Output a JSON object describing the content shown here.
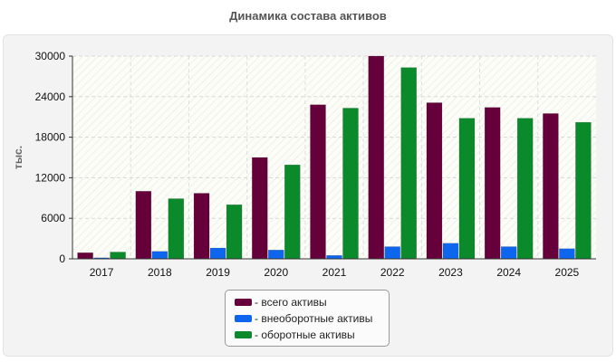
{
  "chart_data": {
    "type": "bar",
    "title": "Динамика состава активов",
    "ylabel": "тыс.",
    "xlabel": "",
    "categories": [
      "2017",
      "2018",
      "2019",
      "2020",
      "2021",
      "2022",
      "2023",
      "2024",
      "2025"
    ],
    "series": [
      {
        "name": "- всего активы",
        "color": "#66003a",
        "values": [
          900,
          10000,
          9700,
          15000,
          22800,
          30000,
          23100,
          22400,
          21500
        ]
      },
      {
        "name": "- внеоборотные активы",
        "color": "#0f66ee",
        "values": [
          150,
          1100,
          1600,
          1300,
          500,
          1800,
          2300,
          1800,
          1500
        ]
      },
      {
        "name": "- оборотные активы",
        "color": "#0a8a2a",
        "values": [
          1000,
          8900,
          8000,
          13900,
          22300,
          28300,
          20800,
          20800,
          20200
        ]
      }
    ],
    "ylim": [
      0,
      30000
    ],
    "yticks": [
      "0",
      "6000",
      "12000",
      "18000",
      "24000",
      "30000"
    ],
    "grid": true,
    "legend": "bottom-center"
  }
}
